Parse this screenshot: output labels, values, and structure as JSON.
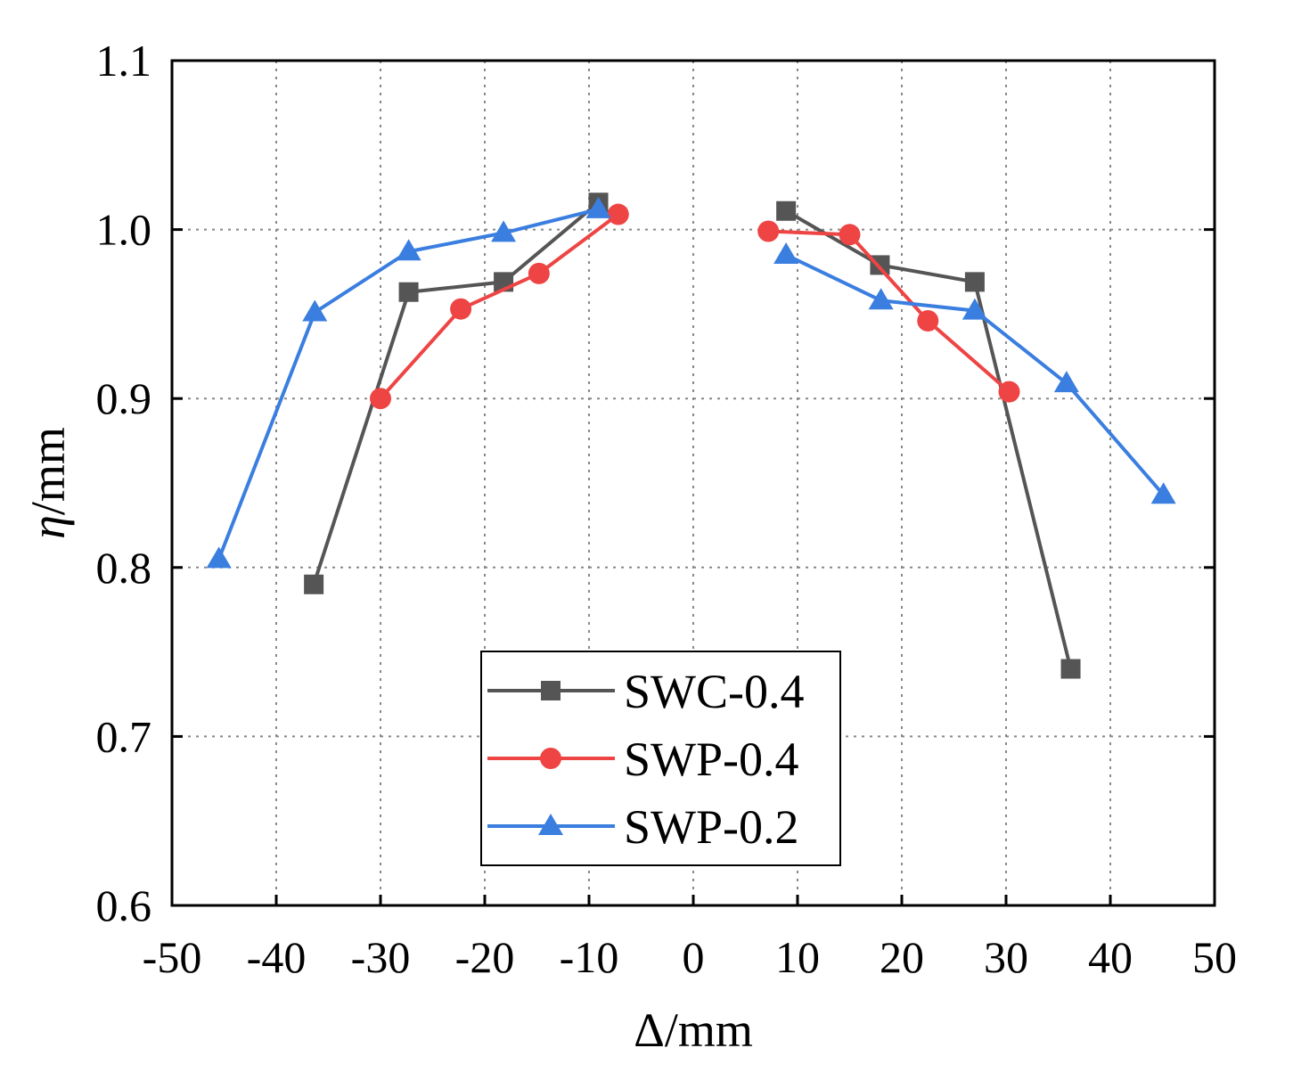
{
  "chart_data": {
    "type": "line",
    "title": "",
    "xlabel": "Δ/mm",
    "ylabel_symbol": "η",
    "ylabel_unit": "/mm",
    "xlim": [
      -50,
      50
    ],
    "ylim": [
      0.6,
      1.1
    ],
    "xticks": [
      "-50",
      "-40",
      "-30",
      "-20",
      "-10",
      "0",
      "10",
      "20",
      "30",
      "40",
      "50"
    ],
    "yticks": [
      "0.6",
      "0.7",
      "0.8",
      "0.9",
      "1.0",
      "1.1"
    ],
    "grid": true,
    "legend_position": "bottom-center",
    "series": [
      {
        "name": "SWC-0.4",
        "color": "#555555",
        "marker": "square",
        "segments": [
          [
            [
              -36.4,
              0.79
            ],
            [
              -27.3,
              0.963
            ],
            [
              -18.2,
              0.969
            ],
            [
              -9.1,
              1.016
            ]
          ],
          [
            [
              8.9,
              1.011
            ],
            [
              17.9,
              0.979
            ],
            [
              27.0,
              0.969
            ],
            [
              36.2,
              0.74
            ]
          ]
        ]
      },
      {
        "name": "SWP-0.4",
        "color": "#ee4444",
        "marker": "circle",
        "segments": [
          [
            [
              -30.0,
              0.9
            ],
            [
              -22.3,
              0.953
            ],
            [
              -14.8,
              0.974
            ],
            [
              -7.2,
              1.009
            ]
          ],
          [
            [
              7.2,
              0.999
            ],
            [
              15.0,
              0.997
            ],
            [
              22.5,
              0.946
            ],
            [
              30.3,
              0.904
            ]
          ]
        ]
      },
      {
        "name": "SWP-0.2",
        "color": "#3a7ee0",
        "marker": "triangle",
        "segments": [
          [
            [
              -45.5,
              0.805
            ],
            [
              -36.3,
              0.951
            ],
            [
              -27.3,
              0.987
            ],
            [
              -18.2,
              0.998
            ],
            [
              -9.1,
              1.012
            ]
          ],
          [
            [
              8.9,
              0.985
            ],
            [
              18.0,
              0.958
            ],
            [
              27.0,
              0.952
            ],
            [
              35.8,
              0.909
            ],
            [
              45.1,
              0.843
            ]
          ]
        ]
      }
    ]
  }
}
